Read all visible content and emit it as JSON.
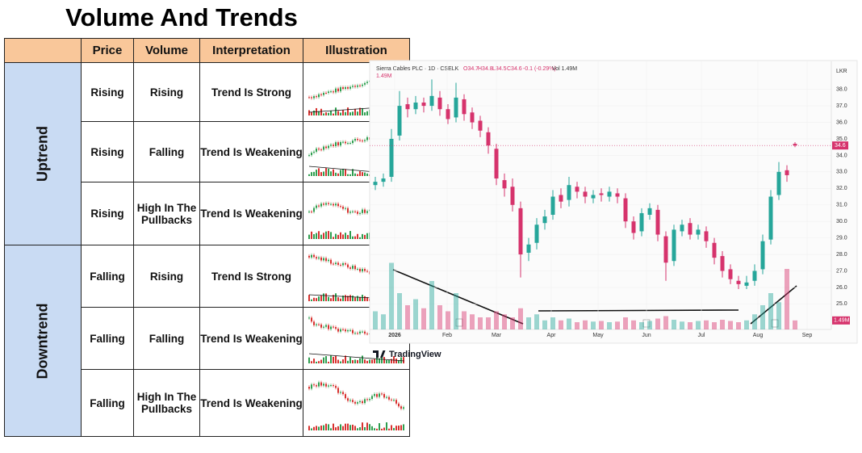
{
  "title": "Volume And Trends",
  "table": {
    "headers": [
      "Price",
      "Volume",
      "Interpretation",
      "Illustration"
    ],
    "groups": [
      {
        "label": "Uptrend",
        "rows": [
          [
            "Rising",
            "Rising",
            "Trend Is Strong"
          ],
          [
            "Rising",
            "Falling",
            "Trend Is Weakening"
          ],
          [
            "Rising",
            "High In The Pullbacks",
            "Trend Is Weakening"
          ]
        ]
      },
      {
        "label": "Downtrend",
        "rows": [
          [
            "Falling",
            "Rising",
            "Trend Is Strong"
          ],
          [
            "Falling",
            "Falling",
            "Trend Is Weakening"
          ],
          [
            "Falling",
            "High In The Pullbacks",
            "Trend Is Weakening"
          ]
        ]
      }
    ]
  },
  "chart_data": {
    "type": "candlestick",
    "header": "Sierra Cables PLC · 1D · CSELK",
    "ohlc": [
      "O34.7",
      "H34.8",
      "L34.5",
      "C34.6",
      "-0.1 (-0.29%)"
    ],
    "volume_text": "Vol 1.49M",
    "volume_label": "1.49M",
    "currency": "LKR",
    "brand": "TradingView",
    "colors": {
      "up": "#26a69a",
      "down": "#d6336c"
    },
    "open": [
      32.2,
      32.4,
      32.7,
      35.2,
      37.1,
      36.8,
      37.2,
      37.0,
      37.5,
      36.8,
      36.3,
      37.4,
      36.6,
      36.1,
      35.4,
      34.4,
      32.5,
      32.1,
      30.8,
      28.1,
      28.7,
      29.9,
      30.4,
      31.6,
      31.3,
      32.1,
      31.8,
      31.4,
      31.7,
      31.5,
      31.7,
      31.4,
      30.0,
      29.4,
      30.4,
      30.7,
      29.1,
      27.6,
      29.4,
      29.9,
      29.2,
      29.4,
      28.7,
      27.9,
      27.1,
      26.4,
      26.1,
      26.4,
      27.1,
      28.9,
      31.6,
      33.1,
      34.7
    ],
    "high": [
      32.7,
      32.9,
      35.6,
      37.9,
      37.5,
      37.6,
      37.5,
      38.6,
      37.9,
      37.1,
      38.4,
      37.7,
      36.9,
      36.4,
      35.7,
      34.7,
      32.9,
      32.6,
      31.2,
      29.0,
      30.2,
      30.7,
      31.9,
      32.0,
      32.7,
      32.4,
      32.1,
      31.9,
      32.0,
      32.1,
      32.0,
      31.7,
      30.3,
      30.8,
      31.1,
      31.0,
      29.4,
      29.8,
      30.1,
      30.2,
      29.8,
      29.7,
      29.0,
      28.2,
      27.4,
      26.7,
      26.7,
      27.4,
      29.2,
      31.9,
      33.6,
      33.4,
      34.8
    ],
    "low": [
      31.9,
      32.1,
      32.4,
      34.9,
      36.3,
      36.5,
      36.6,
      36.7,
      36.4,
      35.9,
      36.0,
      36.1,
      35.6,
      35.1,
      34.1,
      32.2,
      31.5,
      30.6,
      26.6,
      27.6,
      28.3,
      29.5,
      30.1,
      30.8,
      30.9,
      31.4,
      31.1,
      31.1,
      31.2,
      31.2,
      31.1,
      29.6,
      28.9,
      29.1,
      30.1,
      28.8,
      26.4,
      27.3,
      29.1,
      28.9,
      28.9,
      28.4,
      27.4,
      26.6,
      26.2,
      25.9,
      25.9,
      26.1,
      26.8,
      28.6,
      31.3,
      32.4,
      34.5
    ],
    "close": [
      32.4,
      32.6,
      35.0,
      37.0,
      36.8,
      37.2,
      37.0,
      37.6,
      36.8,
      36.2,
      37.5,
      36.5,
      36.0,
      35.5,
      34.6,
      32.6,
      32.0,
      31.0,
      28.0,
      28.6,
      29.8,
      30.3,
      31.5,
      31.2,
      32.2,
      31.8,
      31.5,
      31.6,
      31.6,
      31.8,
      31.5,
      30.0,
      29.3,
      30.5,
      30.8,
      29.2,
      27.5,
      29.5,
      29.8,
      29.2,
      29.5,
      28.8,
      27.8,
      27.0,
      26.5,
      26.2,
      26.3,
      27.0,
      28.8,
      31.5,
      33.0,
      32.8,
      34.6
    ],
    "volume": [
      3,
      2.5,
      11,
      6,
      4,
      5,
      3.5,
      8,
      4,
      3,
      6,
      3,
      2.5,
      2,
      2,
      3,
      2.5,
      2,
      3.5,
      2,
      2.5,
      1.5,
      2,
      1.5,
      1.8,
      1.2,
      1.5,
      1.3,
      1.4,
      1.2,
      1.3,
      2,
      1.5,
      1.2,
      1.4,
      1.8,
      2.2,
      1.6,
      1.3,
      1.2,
      1.4,
      1.5,
      1.2,
      1.6,
      1.4,
      1.2,
      1.5,
      2.5,
      4,
      6,
      4.5,
      10,
      1.49
    ],
    "xlim": [
      -0.3,
      55.5
    ],
    "xticks": [
      {
        "value": 2.4,
        "label": "2026"
      },
      {
        "value": 8.9,
        "label": "Feb"
      },
      {
        "value": 15,
        "label": "Mar"
      },
      {
        "value": 21.8,
        "label": "Apr"
      },
      {
        "value": 27.6,
        "label": "May"
      },
      {
        "value": 33.6,
        "label": "Jun"
      },
      {
        "value": 40.4,
        "label": "Jul"
      },
      {
        "value": 47.4,
        "label": "Aug"
      },
      {
        "value": 53.5,
        "label": "Sep"
      }
    ],
    "ylim": [
      23.6,
      39.5
    ],
    "yticks": [
      {
        "value": 25,
        "label": "25.0"
      },
      {
        "value": 26,
        "label": "26.0"
      },
      {
        "value": 27,
        "label": "27.0"
      },
      {
        "value": 28,
        "label": "28.0"
      },
      {
        "value": 29,
        "label": "29.0"
      },
      {
        "value": 30,
        "label": "30.0"
      },
      {
        "value": 31,
        "label": "31.0"
      },
      {
        "value": 32,
        "label": "32.0"
      },
      {
        "value": 33,
        "label": "33.0"
      },
      {
        "value": 34,
        "label": "34.0"
      },
      {
        "value": 35,
        "label": "35.0"
      },
      {
        "value": 36,
        "label": "36.0"
      },
      {
        "value": 37,
        "label": "37.0"
      },
      {
        "value": 38,
        "label": "38.0"
      }
    ],
    "volume_ylim": [
      0,
      12
    ]
  }
}
